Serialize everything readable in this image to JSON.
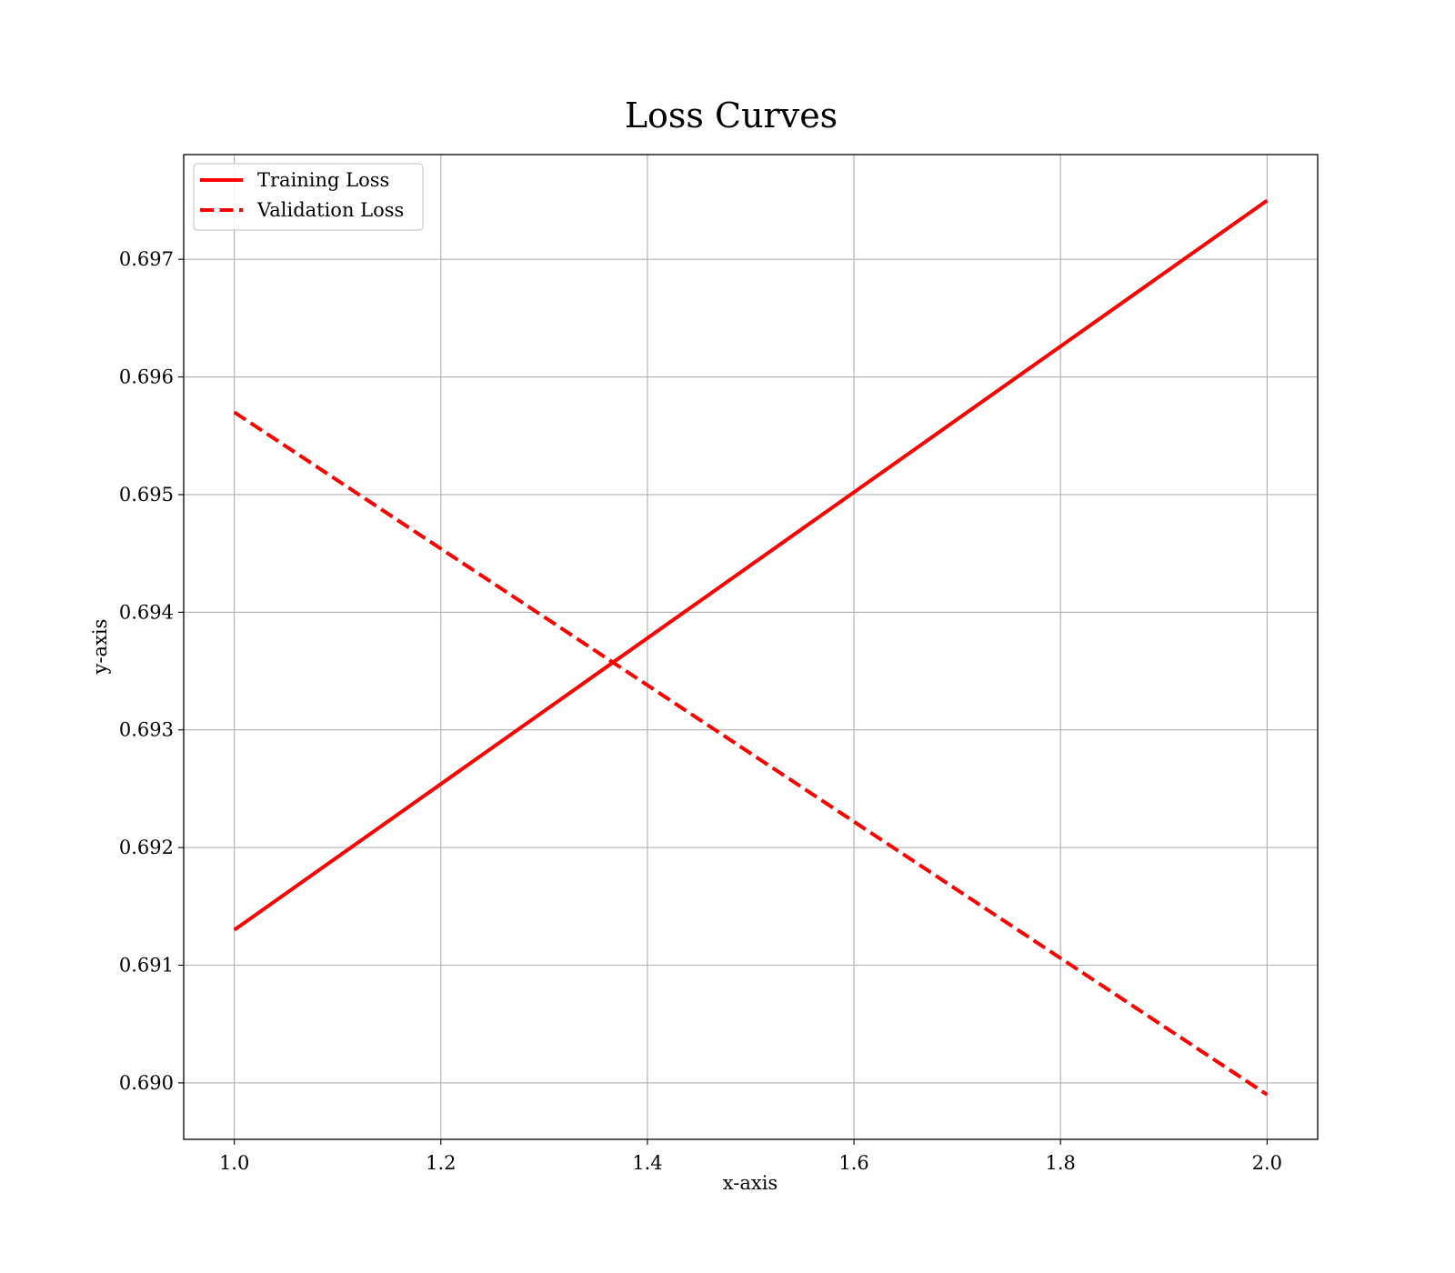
{
  "chart_data": {
    "type": "line",
    "title": "Loss Curves",
    "xlabel": "x-axis",
    "ylabel": "y-axis",
    "xlim": [
      0.951,
      2.049
    ],
    "ylim": [
      0.68952,
      0.69789
    ],
    "xticks": [
      1.0,
      1.2,
      1.4,
      1.6,
      1.8,
      2.0
    ],
    "xtick_labels": [
      "1.0",
      "1.2",
      "1.4",
      "1.6",
      "1.8",
      "2.0"
    ],
    "yticks": [
      0.69,
      0.691,
      0.692,
      0.693,
      0.694,
      0.695,
      0.696,
      0.697
    ],
    "ytick_labels": [
      "0.690",
      "0.691",
      "0.692",
      "0.693",
      "0.694",
      "0.695",
      "0.696",
      "0.697"
    ],
    "grid": true,
    "legend_position": "upper-left",
    "series": [
      {
        "name": "Training Loss",
        "x": [
          1.0,
          2.0
        ],
        "y": [
          0.6913,
          0.6975
        ],
        "color": "#ff0000",
        "style": "solid"
      },
      {
        "name": "Validation Loss",
        "x": [
          1.0,
          2.0
        ],
        "y": [
          0.6957,
          0.6899
        ],
        "color": "#ff0000",
        "style": "dashed"
      }
    ]
  }
}
